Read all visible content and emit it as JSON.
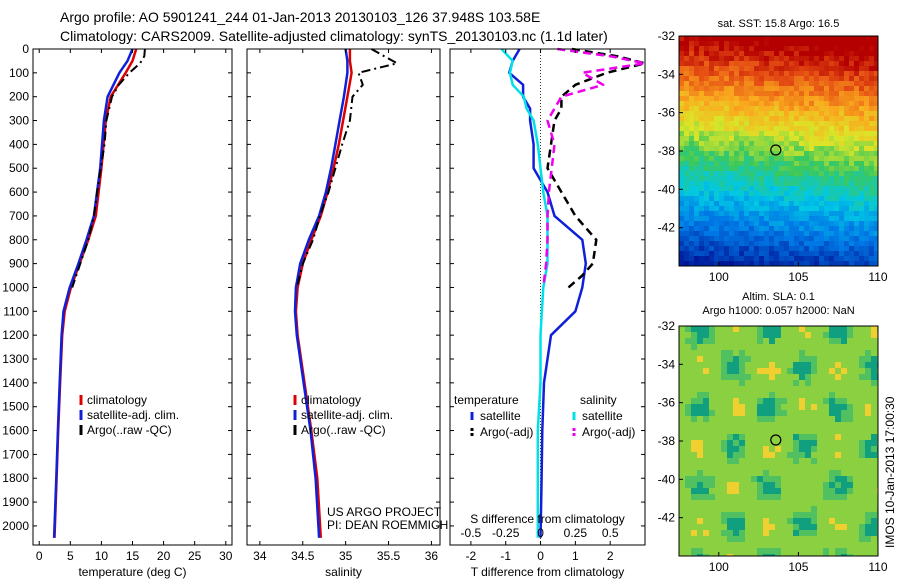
{
  "header": {
    "line1": "Argo profile: AO 5901241_244 01-Jan-2013 20130103_126 37.948S 103.58E",
    "line2": "Climatology: CARS2009. Satellite-adjusted climatology: synTS_20130103.nc (1.1d later)"
  },
  "colors": {
    "climatology": "#dd0000",
    "satellite": "#1020d8",
    "argo": "#000000",
    "sal_satellite": "#00e0e8",
    "sal_argo": "#ee00ee"
  },
  "chart_data": [
    {
      "type": "line",
      "name": "temperature",
      "xlabel": "temperature (deg C)",
      "xlim": [
        -1,
        31
      ],
      "ylim": [
        2080,
        0
      ],
      "xticks": [
        "0",
        "5",
        "10",
        "15",
        "20",
        "25",
        "30"
      ],
      "yticks": [
        "0",
        "100",
        "200",
        "300",
        "400",
        "500",
        "600",
        "700",
        "800",
        "900",
        "1000",
        "1100",
        "1200",
        "1300",
        "1400",
        "1500",
        "1600",
        "1700",
        "1800",
        "1900",
        "2000"
      ],
      "legend": [
        "climatology",
        "satellite-adj. clim.",
        "Argo(..raw -QC)"
      ],
      "series": [
        {
          "name": "climatology",
          "depth": [
            0,
            50,
            100,
            200,
            300,
            500,
            700,
            800,
            900,
            1000,
            1100,
            1200,
            1400,
            1600,
            1800,
            2050
          ],
          "values": [
            15.6,
            15.0,
            13.9,
            11.5,
            10.7,
            10.0,
            9.1,
            7.9,
            6.5,
            5.1,
            4.1,
            3.7,
            3.35,
            3.05,
            2.8,
            2.45
          ]
        },
        {
          "name": "satellite-adj. clim.",
          "depth": [
            0,
            50,
            100,
            200,
            300,
            500,
            700,
            800,
            900,
            1000,
            1100,
            1200,
            1400,
            1600,
            1800,
            2050
          ],
          "values": [
            15.0,
            14.2,
            12.9,
            11.0,
            10.4,
            9.8,
            8.8,
            7.6,
            6.3,
            4.9,
            3.9,
            3.6,
            3.3,
            3.0,
            2.75,
            2.4
          ]
        },
        {
          "name": "Argo(..raw -QC)",
          "depth": [
            0,
            30,
            60,
            100,
            150,
            200,
            300,
            400,
            500,
            600,
            700,
            800,
            900,
            1000
          ],
          "values": [
            17.0,
            16.9,
            16.2,
            14.5,
            12.8,
            11.7,
            10.8,
            10.5,
            9.9,
            9.3,
            8.8,
            7.9,
            6.6,
            5.3
          ]
        }
      ]
    },
    {
      "type": "line",
      "name": "salinity",
      "xlabel": "salinity",
      "xlim": [
        33.85,
        36.1
      ],
      "ylim": [
        2080,
        0
      ],
      "xticks": [
        "34",
        "34.5",
        "35",
        "35.5",
        "36"
      ],
      "legend": [
        "climatology",
        "satellite-adj. clim.",
        "Argo(..raw -QC)"
      ],
      "annotation": [
        "US ARGO PROJECT",
        "PI: DEAN ROEMMICH"
      ],
      "series": [
        {
          "name": "climatology",
          "depth": [
            0,
            50,
            100,
            200,
            300,
            400,
            500,
            600,
            700,
            800,
            900,
            1000,
            1100,
            1200,
            1400,
            1600,
            1800,
            2050
          ],
          "values": [
            35.05,
            35.05,
            35.07,
            35.02,
            34.97,
            34.92,
            34.86,
            34.79,
            34.71,
            34.6,
            34.5,
            34.44,
            34.42,
            34.44,
            34.52,
            34.6,
            34.67,
            34.71
          ]
        },
        {
          "name": "satellite-adj. clim.",
          "depth": [
            0,
            50,
            100,
            200,
            300,
            400,
            500,
            600,
            700,
            800,
            900,
            1000,
            1100,
            1200,
            1400,
            1600,
            1800,
            2050
          ],
          "values": [
            35.0,
            35.02,
            35.02,
            34.98,
            34.93,
            34.88,
            34.83,
            34.77,
            34.69,
            34.57,
            34.47,
            34.42,
            34.41,
            34.43,
            34.51,
            34.59,
            34.65,
            34.69
          ]
        },
        {
          "name": "Argo(..raw -QC)",
          "depth": [
            0,
            30,
            60,
            100,
            150,
            200,
            300,
            400,
            500,
            600,
            700,
            800,
            900,
            1000
          ],
          "values": [
            35.3,
            35.45,
            35.6,
            35.15,
            35.2,
            35.08,
            35.05,
            34.96,
            34.88,
            34.8,
            34.7,
            34.62,
            34.5,
            34.43
          ]
        }
      ]
    },
    {
      "type": "line",
      "name": "difference",
      "xlabel": "T difference from climatology",
      "xlabel2": "S difference from climatology",
      "xlim": [
        -2.6,
        3.0
      ],
      "ylim": [
        2080,
        0
      ],
      "xticks": [
        "-2",
        "-1",
        "0",
        "1",
        "2"
      ],
      "xticks2": [
        "-0.5",
        "-0.25",
        "0",
        "0.25",
        "0.5"
      ],
      "legend_headers": [
        "temperature",
        "salinity"
      ],
      "legend": [
        "satellite",
        "Argo(-adj)",
        "satellite",
        "Argo(-adj)"
      ],
      "series": [
        {
          "name": "satellite",
          "group": "temperature",
          "depth": [
            0,
            50,
            100,
            150,
            200,
            250,
            300,
            400,
            500,
            600,
            700,
            800,
            900,
            1000,
            1100,
            1200,
            1400,
            1600,
            1800,
            2050
          ],
          "values": [
            -0.6,
            -0.8,
            -0.9,
            -0.5,
            -0.5,
            -0.3,
            -0.3,
            -0.2,
            -0.2,
            0.2,
            0.4,
            1.2,
            1.3,
            1.2,
            1.0,
            0.3,
            0.1,
            0.05,
            0.03,
            0.0
          ]
        },
        {
          "name": "Argo(-adj)",
          "group": "temperature",
          "depth": [
            0,
            30,
            60,
            100,
            150,
            200,
            250,
            300,
            400,
            500,
            600,
            700,
            800,
            900,
            950,
            1000
          ],
          "values": [
            0.9,
            2.2,
            3.0,
            1.9,
            1.0,
            0.6,
            0.6,
            0.4,
            0.3,
            0.2,
            0.6,
            1.0,
            1.6,
            1.5,
            1.2,
            0.8
          ]
        },
        {
          "name": "satellite",
          "group": "salinity",
          "depth": [
            0,
            50,
            100,
            150,
            200,
            250,
            300,
            400,
            500,
            600,
            700,
            800,
            900,
            1000,
            1200,
            1400,
            1600,
            1800,
            2050
          ],
          "values": [
            -0.28,
            -0.2,
            -0.22,
            -0.2,
            -0.12,
            -0.1,
            -0.05,
            -0.02,
            0.0,
            0.02,
            0.05,
            0.05,
            0.05,
            0.02,
            0.0,
            0.0,
            -0.02,
            -0.02,
            -0.02
          ]
        },
        {
          "name": "Argo(-adj)",
          "group": "salinity",
          "depth": [
            0,
            30,
            60,
            100,
            150,
            200,
            250,
            300,
            400,
            500,
            600,
            700,
            800,
            900,
            1000
          ],
          "values": [
            0.12,
            0.5,
            0.75,
            0.3,
            0.45,
            0.15,
            0.1,
            0.05,
            0.1,
            0.08,
            0.06,
            0.05,
            0.05,
            0.04,
            0.02
          ]
        }
      ]
    },
    {
      "type": "heatmap",
      "name": "sst-map",
      "title": "sat. SST: 15.8 Argo: 16.5",
      "xlim": [
        97.5,
        110
      ],
      "ylim": [
        -44,
        -32
      ],
      "xticks": [
        "100",
        "105",
        "110"
      ],
      "yticks": [
        "-32",
        "-34",
        "-36",
        "-38",
        "-40",
        "-42"
      ],
      "marker": {
        "lon": 103.58,
        "lat": -37.948
      }
    },
    {
      "type": "heatmap",
      "name": "sla-map",
      "title": "Altim. SLA: 0.1",
      "subtitle": "Argo h1000: 0.057 h2000: NaN",
      "xlim": [
        97.5,
        110
      ],
      "ylim": [
        -44,
        -32
      ],
      "xticks": [
        "100",
        "105",
        "110"
      ],
      "yticks": [
        "-32",
        "-34",
        "-36",
        "-38",
        "-40",
        "-42"
      ],
      "marker": {
        "lon": 103.58,
        "lat": -37.948
      }
    }
  ],
  "sidebar_label": "IMOS 10-Jan-2013 17:00:30"
}
